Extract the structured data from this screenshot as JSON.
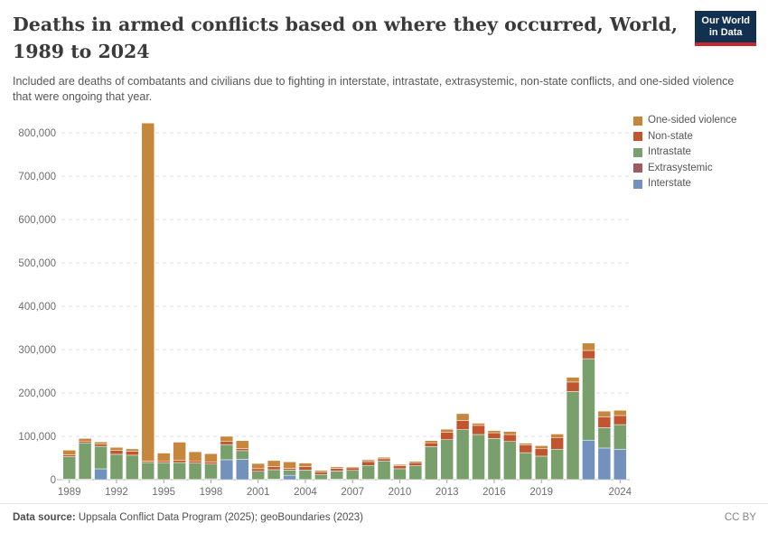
{
  "header": {
    "title": "Deaths in armed conflicts based on where they occurred, World, 1989 to 2024",
    "subtitle": "Included are deaths of combatants and civilians due to fighting in interstate, intrastate, extrasystemic, non-state conflicts, and one-sided violence that were ongoing that year."
  },
  "logo": {
    "line1": "Our World",
    "line2": "in Data"
  },
  "footer": {
    "datasource_label": "Data source:",
    "datasource_text": " Uppsala Conflict Data Program (2025); geoBoundaries (2023)",
    "license": "CC BY"
  },
  "colors": {
    "one_sided": "#c6863c",
    "non_state": "#c1552f",
    "intrastate": "#79a06c",
    "extrasystemic": "#9f5b63",
    "interstate": "#7291bd",
    "grid": "#dcdcdc",
    "axis": "#b5b5b5",
    "tick_text": "#6e6e6e"
  },
  "chart_data": {
    "type": "bar",
    "subtype": "stacked",
    "title": "Deaths in armed conflicts based on where they occurred, World, 1989 to 2024",
    "xlabel": "",
    "ylabel": "",
    "ylim": [
      0,
      830000
    ],
    "grid": "horizontal-dashed",
    "legend_position": "right",
    "x": [
      1989,
      1990,
      1991,
      1992,
      1993,
      1994,
      1995,
      1996,
      1997,
      1998,
      1999,
      2000,
      2001,
      2002,
      2003,
      2004,
      2005,
      2006,
      2007,
      2008,
      2009,
      2010,
      2011,
      2012,
      2013,
      2014,
      2015,
      2016,
      2017,
      2018,
      2019,
      2020,
      2021,
      2022,
      2023,
      2024
    ],
    "x_tick_labels": [
      1989,
      1992,
      1995,
      1998,
      2001,
      2004,
      2007,
      2010,
      2013,
      2016,
      2019,
      2024
    ],
    "y_ticks": [
      0,
      100000,
      200000,
      300000,
      400000,
      500000,
      600000,
      700000,
      800000
    ],
    "series": [
      {
        "name": "Interstate",
        "color": "#7291bd",
        "values": [
          1000,
          1000,
          25000,
          500,
          500,
          500,
          300,
          500,
          300,
          2000,
          46000,
          47000,
          300,
          1000,
          10000,
          300,
          200,
          1000,
          300,
          800,
          200,
          200,
          100,
          100,
          300,
          300,
          200,
          200,
          100,
          200,
          300,
          300,
          200,
          91000,
          73000,
          70000
        ]
      },
      {
        "name": "Extrasystemic",
        "color": "#9f5b63",
        "values": [
          0,
          0,
          0,
          0,
          0,
          0,
          0,
          0,
          0,
          0,
          0,
          0,
          0,
          0,
          0,
          0,
          0,
          0,
          0,
          0,
          0,
          0,
          0,
          0,
          0,
          0,
          0,
          0,
          0,
          0,
          0,
          0,
          0,
          0,
          0,
          0
        ]
      },
      {
        "name": "Intrastate",
        "color": "#79a06c",
        "values": [
          52000,
          84000,
          52000,
          58000,
          56000,
          39000,
          39000,
          39000,
          38000,
          34000,
          35000,
          20000,
          19000,
          22000,
          12000,
          22000,
          12000,
          19000,
          21000,
          32000,
          43000,
          25000,
          32000,
          76000,
          92000,
          115000,
          104000,
          95000,
          88000,
          62000,
          54000,
          70000,
          203000,
          188000,
          47000,
          57000
        ]
      },
      {
        "name": "Non-state",
        "color": "#c1552f",
        "values": [
          4000,
          4000,
          5000,
          9000,
          9000,
          3000,
          4000,
          5000,
          5000,
          5000,
          7000,
          5000,
          6000,
          7000,
          4000,
          8000,
          5000,
          6000,
          6000,
          9000,
          5000,
          7000,
          7000,
          9000,
          17000,
          21000,
          21000,
          13000,
          16000,
          18000,
          17000,
          27000,
          22000,
          19000,
          25000,
          21000
        ]
      },
      {
        "name": "One-sided violence",
        "color": "#c6863c",
        "values": [
          11000,
          6000,
          5000,
          7000,
          5500,
          780000,
          18000,
          42000,
          21000,
          19000,
          12000,
          18000,
          12000,
          14000,
          15000,
          8000,
          4000,
          3500,
          2500,
          4000,
          3500,
          3000,
          3000,
          5000,
          7000,
          16000,
          5000,
          5000,
          7000,
          4000,
          7000,
          8000,
          11000,
          17000,
          13000,
          12000
        ]
      }
    ]
  }
}
